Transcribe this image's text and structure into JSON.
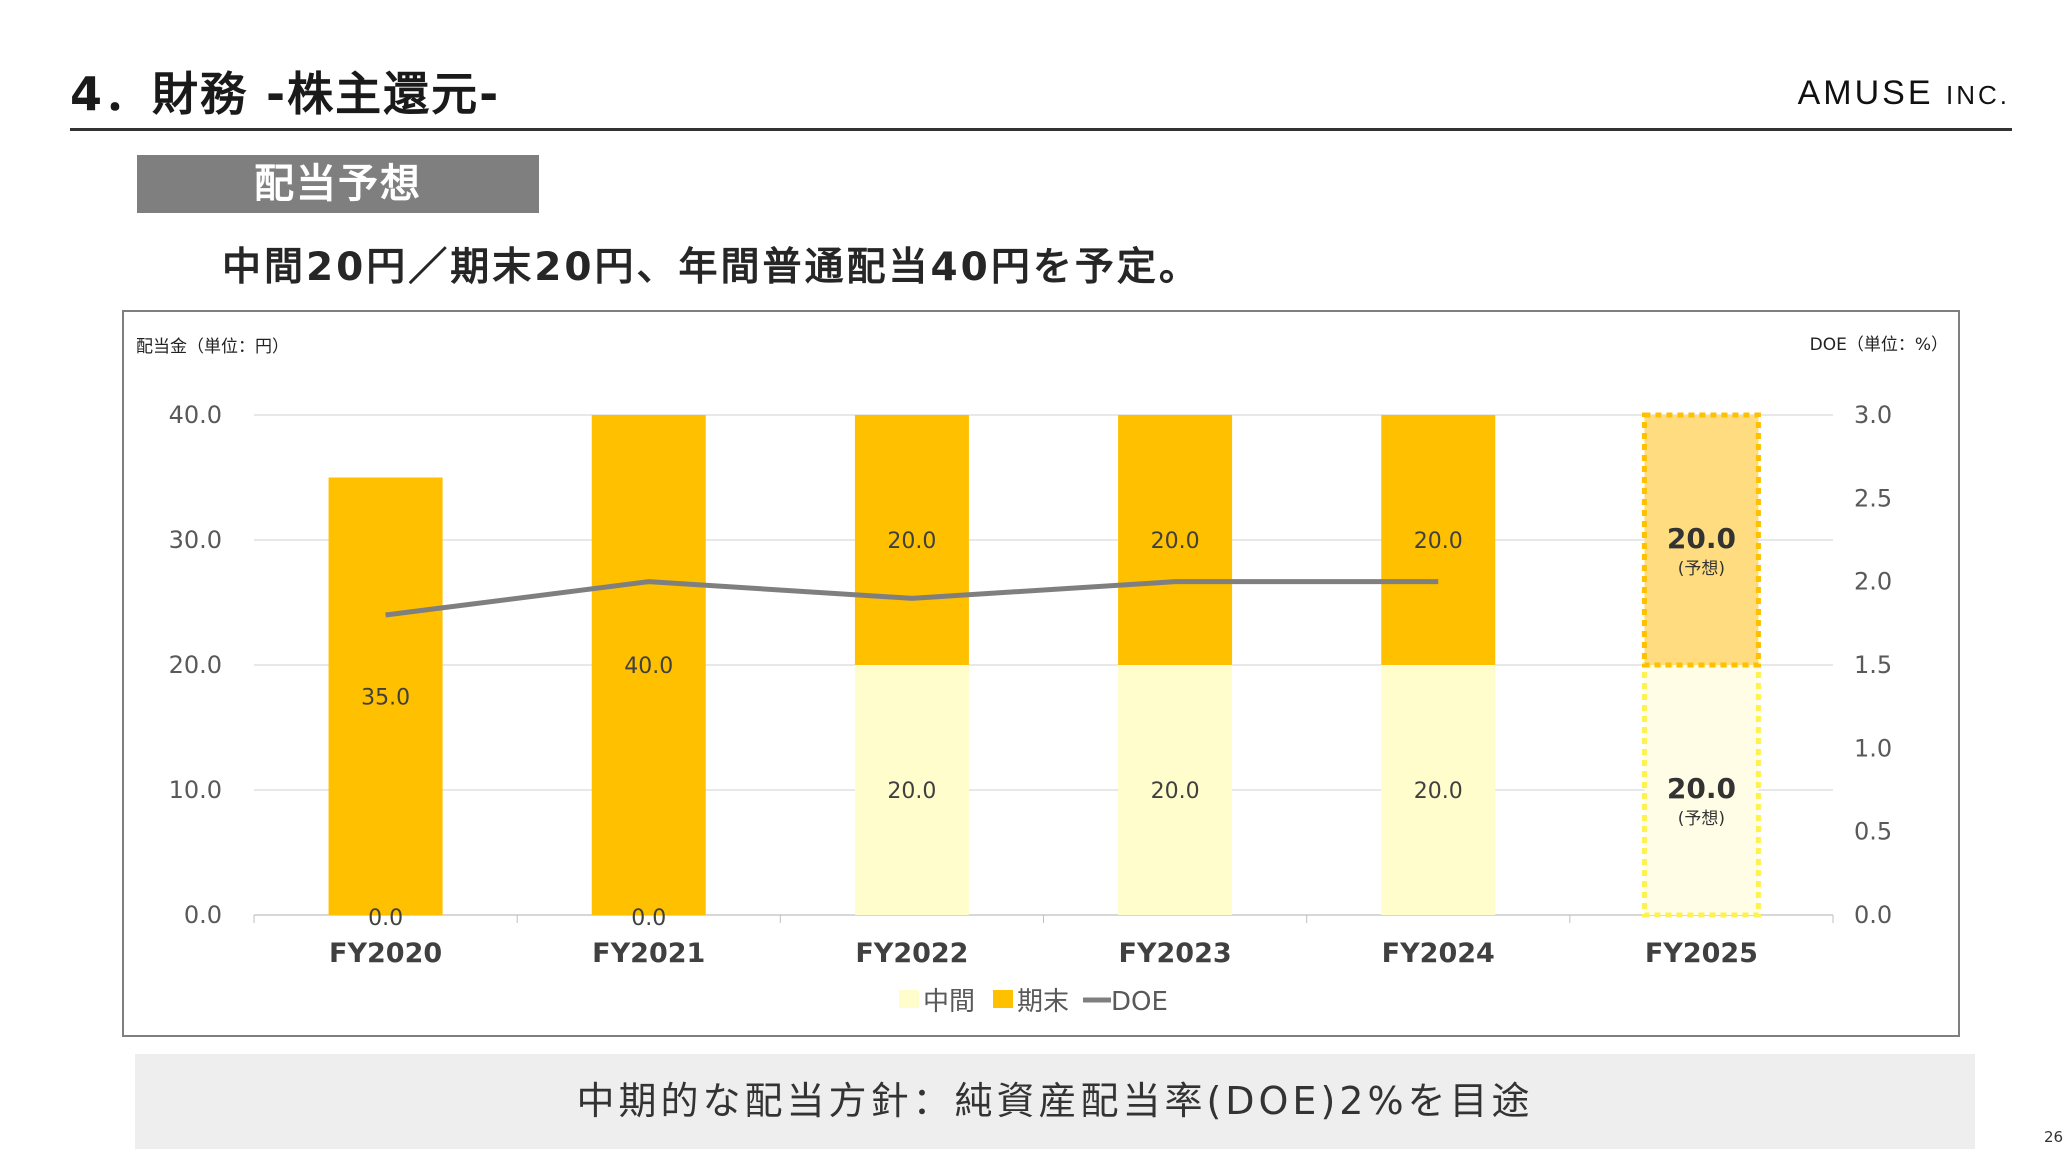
{
  "header": {
    "title": "4．財務 -株主還元-",
    "logo": "AMUSE",
    "logo_suffix": "INC."
  },
  "section_tag": "配当予想",
  "lead": "中間20円／期末20円、年間普通配当40円を予定。",
  "footer_banner": "中期的な配当方針：純資産配当率(DOE)2%を目途",
  "page_number": "26",
  "chart_data": {
    "type": "bar",
    "stacked": true,
    "left_axis_label": "配当金（単位：円）",
    "right_axis_label": "DOE（単位：%）",
    "categories": [
      "FY2020",
      "FY2021",
      "FY2022",
      "FY2023",
      "FY2024",
      "FY2025"
    ],
    "ylim": [
      0,
      40
    ],
    "yticks": [
      "0.0",
      "10.0",
      "20.0",
      "30.0",
      "40.0"
    ],
    "y2lim": [
      0,
      3
    ],
    "y2ticks": [
      "0.0",
      "0.5",
      "1.0",
      "1.5",
      "2.0",
      "2.5",
      "3.0"
    ],
    "grid": true,
    "legend_position": "bottom",
    "series": [
      {
        "name": "中間",
        "kind": "bar",
        "color": "#FFFDCC",
        "values": [
          0,
          0,
          20,
          20,
          20,
          20
        ],
        "labels": [
          "0.0",
          "0.0",
          "20.0",
          "20.0",
          "20.0",
          "20.0"
        ]
      },
      {
        "name": "期末",
        "kind": "bar",
        "color": "#FFC000",
        "values": [
          35,
          40,
          20,
          20,
          20,
          20
        ],
        "labels": [
          "35.0",
          "40.0",
          "20.0",
          "20.0",
          "20.0",
          "20.0"
        ]
      },
      {
        "name": "DOE",
        "kind": "line",
        "axis": "right",
        "color": "#7F7F7F",
        "values": [
          1.8,
          2.0,
          1.9,
          2.0,
          2.0,
          null
        ]
      }
    ],
    "forecast": {
      "category": "FY2025",
      "note": "(予想)",
      "interim_color": "#FFFDE6",
      "interim_border": "#FFF250",
      "final_color": "#FFDC7F",
      "final_border": "#FFC000"
    }
  }
}
